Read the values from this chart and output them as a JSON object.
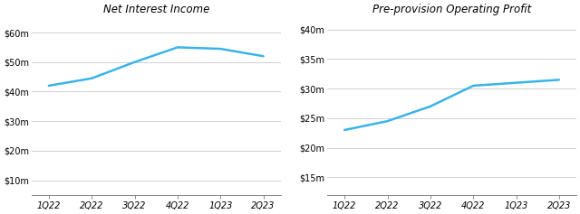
{
  "chart1_title": "Net Interest Income",
  "chart2_title": "Pre-provision Operating Profit",
  "x_labels": [
    "1Q22",
    "2Q22",
    "3Q22",
    "4Q22",
    "1Q23",
    "2Q23"
  ],
  "x_values": [
    0,
    1,
    2,
    3,
    4,
    5
  ],
  "nii_values": [
    42,
    44.5,
    50,
    55,
    54.5,
    52
  ],
  "ppop_values": [
    23,
    24.5,
    27,
    30.5,
    31,
    31.5
  ],
  "nii_ylim": [
    5,
    65
  ],
  "nii_yticks": [
    10,
    20,
    30,
    40,
    50,
    60
  ],
  "ppop_ylim": [
    12,
    42
  ],
  "ppop_yticks": [
    15,
    20,
    25,
    30,
    35,
    40
  ],
  "line_color": "#3ab4e8",
  "line_width": 1.8,
  "bg_color": "#ffffff",
  "grid_color": "#d0d0d0",
  "title_fontsize": 8.5,
  "tick_fontsize": 7.0,
  "title_style": "italic"
}
